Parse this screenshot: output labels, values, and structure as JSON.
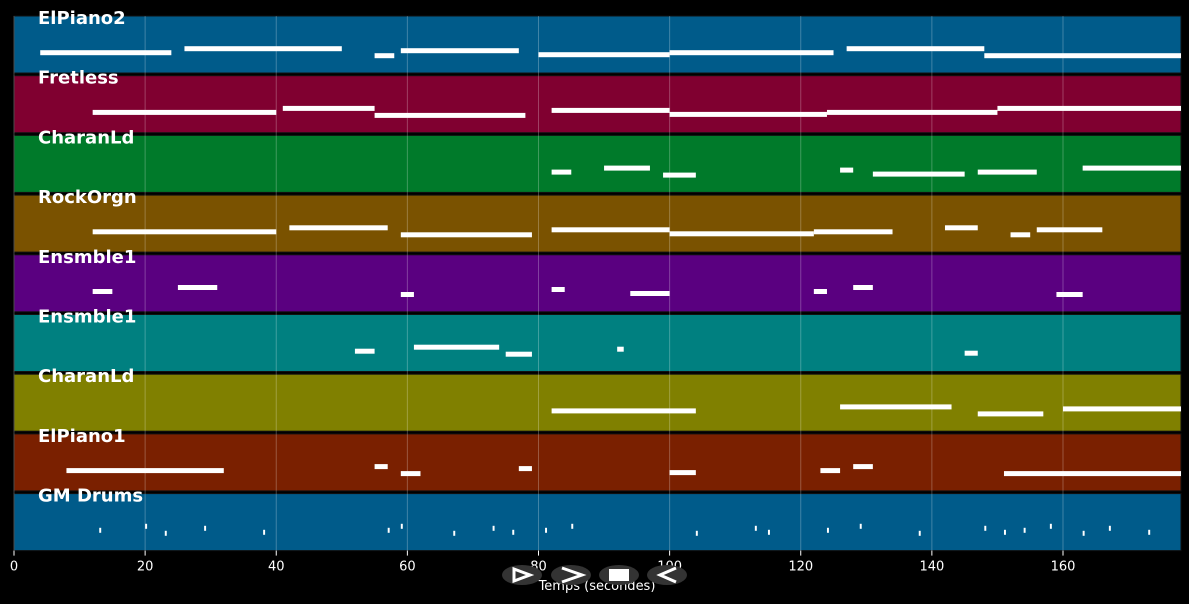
{
  "chart_data": {
    "type": "pianoroll",
    "x_label": "Temps (secondes)",
    "xlim": [
      0,
      178
    ],
    "xticks": [
      0,
      20,
      40,
      60,
      80,
      100,
      120,
      140,
      160
    ],
    "grid": true,
    "series": [
      {
        "name": "ElPiano2",
        "color": "#005b8a",
        "x": [
          4,
          26,
          55,
          59,
          80,
          100,
          127,
          148
        ],
        "x_end": [
          24,
          50,
          58,
          77,
          100,
          125,
          148,
          178
        ]
      },
      {
        "name": "Fretless",
        "color": "#800030",
        "x": [
          12,
          41,
          55,
          82,
          100,
          124,
          150
        ],
        "x_end": [
          40,
          55,
          78,
          100,
          124,
          150,
          178
        ]
      },
      {
        "name": "CharanLd",
        "color": "#007a2a",
        "x": [
          82,
          90,
          99,
          126,
          131,
          147,
          163
        ],
        "x_end": [
          85,
          97,
          104,
          128,
          145,
          156,
          178
        ]
      },
      {
        "name": "RockOrgn",
        "color": "#7a5200",
        "x": [
          12,
          42,
          59,
          82,
          100,
          122,
          142,
          152,
          156
        ],
        "x_end": [
          40,
          57,
          79,
          100,
          122,
          134,
          147,
          155,
          166
        ]
      },
      {
        "name": "Ensmble1",
        "color": "#5a0080",
        "x": [
          12,
          25,
          59,
          82,
          94,
          122,
          128,
          159
        ],
        "x_end": [
          15,
          31,
          61,
          84,
          100,
          124,
          131,
          163
        ]
      },
      {
        "name": "Ensmble1",
        "color": "#008080",
        "x": [
          52,
          61,
          75,
          92,
          145
        ],
        "x_end": [
          55,
          74,
          79,
          93,
          147
        ]
      },
      {
        "name": "CharanLd",
        "color": "#808000",
        "x": [
          82,
          126,
          147,
          160
        ],
        "x_end": [
          104,
          143,
          157,
          178
        ]
      },
      {
        "name": "ElPiano1",
        "color": "#7a2000",
        "x": [
          8,
          55,
          59,
          77,
          100,
          123,
          128,
          151
        ],
        "x_end": [
          32,
          57,
          62,
          79,
          104,
          126,
          131,
          178
        ]
      },
      {
        "name": "GM Drums",
        "color": "#005b8a",
        "x": [
          13,
          20,
          23,
          29,
          38,
          57,
          59,
          67,
          73,
          76,
          81,
          85,
          104,
          113,
          115,
          124,
          129,
          138,
          148,
          151,
          154,
          158,
          163,
          167,
          173
        ],
        "x_end": [
          13.3,
          20.3,
          23.3,
          29.3,
          38.3,
          57.3,
          59.3,
          67.3,
          73.3,
          76.3,
          81.3,
          85.3,
          104.3,
          113.3,
          115.3,
          124.3,
          129.3,
          138.3,
          148.3,
          151.3,
          154.3,
          158.3,
          163.3,
          167.3,
          173.3
        ]
      }
    ]
  }
}
